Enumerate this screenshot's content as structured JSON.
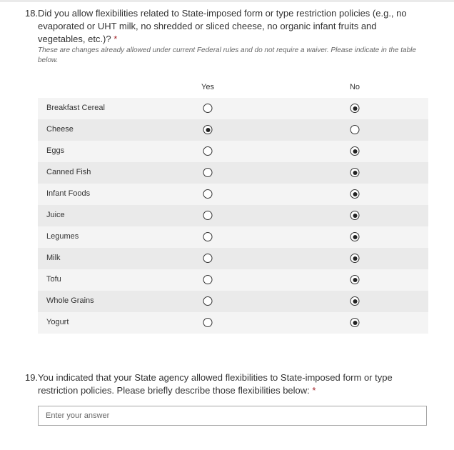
{
  "q18": {
    "number": "18.",
    "text": "Did you allow flexibilities related to State-imposed form or type restriction policies (e.g., no evaporated or UHT milk, no shredded or sliced cheese, no organic infant fruits and vegetables, etc.)?",
    "required": "*",
    "subtitle": "These are changes already allowed under current Federal rules and do not require a waiver. Please indicate in the table below.",
    "columns": [
      "Yes",
      "No"
    ],
    "rows": [
      {
        "label": "Breakfast Cereal",
        "selected": "No"
      },
      {
        "label": "Cheese",
        "selected": "Yes"
      },
      {
        "label": "Eggs",
        "selected": "No"
      },
      {
        "label": "Canned Fish",
        "selected": "No"
      },
      {
        "label": "Infant Foods",
        "selected": "No"
      },
      {
        "label": "Juice",
        "selected": "No"
      },
      {
        "label": "Legumes",
        "selected": "No"
      },
      {
        "label": "Milk",
        "selected": "No"
      },
      {
        "label": "Tofu",
        "selected": "No"
      },
      {
        "label": "Whole Grains",
        "selected": "No"
      },
      {
        "label": "Yogurt",
        "selected": "No"
      }
    ]
  },
  "q19": {
    "number": "19.",
    "text": "You indicated that your State agency allowed flexibilities to State-imposed form or type restriction policies. Please briefly describe those flexibilities below:",
    "required": "*",
    "placeholder": "Enter your answer",
    "value": ""
  }
}
